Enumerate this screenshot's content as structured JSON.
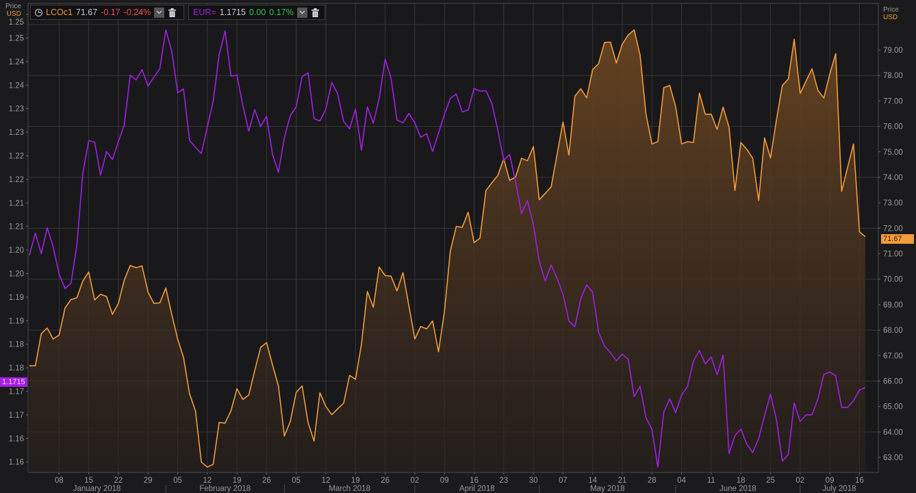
{
  "left_axis": {
    "title": "Price",
    "unit": "USD"
  },
  "right_axis": {
    "title": "Price",
    "unit": "USD"
  },
  "legend": [
    {
      "symbol": "LCOc1",
      "last": "71.67",
      "change": "-0.17",
      "change_pct": "-0.24%",
      "icon": "clock-icon"
    },
    {
      "symbol": "EUR=",
      "last": "1.1715",
      "change": "0.00",
      "change_pct": "0.17%"
    }
  ],
  "last_tags": {
    "left": "1.1715",
    "right": "71.67"
  },
  "colors": {
    "brent": "#f39c3a",
    "eur": "#a51ee6",
    "background": "#1b1b1d",
    "grid": "#343437"
  },
  "chart_data": {
    "type": "line",
    "x_unit": "trading day index (Jan 1 2018 = 0)",
    "xlim": [
      -0.23,
      143.19
    ],
    "x_ticks": [
      {
        "i": 5,
        "label": "08"
      },
      {
        "i": 10,
        "label": "15"
      },
      {
        "i": 15,
        "label": "22"
      },
      {
        "i": 20,
        "label": "29"
      },
      {
        "i": 25,
        "label": "05"
      },
      {
        "i": 30,
        "label": "12"
      },
      {
        "i": 35,
        "label": "19"
      },
      {
        "i": 40,
        "label": "26"
      },
      {
        "i": 45,
        "label": "05"
      },
      {
        "i": 50,
        "label": "12"
      },
      {
        "i": 55,
        "label": "19"
      },
      {
        "i": 60,
        "label": "26"
      },
      {
        "i": 65,
        "label": "02"
      },
      {
        "i": 70,
        "label": "09"
      },
      {
        "i": 75,
        "label": "16"
      },
      {
        "i": 80,
        "label": "23"
      },
      {
        "i": 85,
        "label": "30"
      },
      {
        "i": 90,
        "label": "07"
      },
      {
        "i": 95,
        "label": "14"
      },
      {
        "i": 100,
        "label": "21"
      },
      {
        "i": 105,
        "label": "28"
      },
      {
        "i": 110,
        "label": "04"
      },
      {
        "i": 115,
        "label": "11"
      },
      {
        "i": 120,
        "label": "18"
      },
      {
        "i": 125,
        "label": "25"
      },
      {
        "i": 130,
        "label": "02"
      },
      {
        "i": 135,
        "label": "09"
      },
      {
        "i": 140,
        "label": "16"
      }
    ],
    "months": [
      {
        "label": "January 2018",
        "start": -0.23,
        "end": 23
      },
      {
        "label": "February 2018",
        "start": 23,
        "end": 43
      },
      {
        "label": "March 2018",
        "start": 43,
        "end": 65
      },
      {
        "label": "April 2018",
        "start": 65,
        "end": 86
      },
      {
        "label": "May 2018",
        "start": 86,
        "end": 109
      },
      {
        "label": "June 2018",
        "start": 109,
        "end": 130
      },
      {
        "label": "July 2018",
        "start": 130,
        "end": 143.19
      }
    ],
    "left_ylim": [
      1.15348,
      1.25304
    ],
    "left_ticks": [
      {
        "v": 1.2507,
        "label": "1.25"
      },
      {
        "v": 1.2457,
        "label": "1.25"
      },
      {
        "v": 1.2407,
        "label": "1.24"
      },
      {
        "v": 1.2357,
        "label": "1.24"
      },
      {
        "v": 1.2307,
        "label": "1.23"
      },
      {
        "v": 1.2257,
        "label": "1.23"
      },
      {
        "v": 1.2207,
        "label": "1.22"
      },
      {
        "v": 1.2157,
        "label": "1.22"
      },
      {
        "v": 1.2107,
        "label": "1.21"
      },
      {
        "v": 1.2057,
        "label": "1.21"
      },
      {
        "v": 1.2007,
        "label": "1.20"
      },
      {
        "v": 1.1957,
        "label": "1.20"
      },
      {
        "v": 1.1907,
        "label": "1.19"
      },
      {
        "v": 1.1857,
        "label": "1.19"
      },
      {
        "v": 1.1807,
        "label": "1.18"
      },
      {
        "v": 1.1757,
        "label": "1.18"
      },
      {
        "v": 1.1707,
        "label": "1.17"
      },
      {
        "v": 1.1657,
        "label": "1.17"
      },
      {
        "v": 1.1607,
        "label": "1.16"
      },
      {
        "v": 1.1557,
        "label": "1.16"
      }
    ],
    "right_ylim": [
      62.41,
      80.83
    ],
    "right_ticks": [
      79,
      78,
      77,
      76,
      75,
      74,
      73,
      72,
      71,
      70,
      69,
      68,
      67,
      66,
      65,
      64,
      63
    ],
    "right_tick_labels": [
      "79.00",
      "78.00",
      "77.00",
      "76.00",
      "75.00",
      "74.00",
      "73.00",
      "72.00",
      "71.00",
      "70.00",
      "69.00",
      "68.00",
      "67.00",
      "66.00",
      "65.00",
      "64.00",
      "63.00"
    ],
    "grid_values_right": [
      80,
      78,
      76,
      74,
      72,
      70,
      68,
      66,
      64
    ],
    "series": [
      {
        "name": "LCOc1",
        "axis": "right",
        "style": "area",
        "values": [
          66.6,
          66.6,
          67.86,
          68.08,
          67.65,
          67.8,
          68.87,
          69.2,
          69.27,
          69.92,
          70.28,
          69.18,
          69.41,
          69.32,
          68.62,
          69.05,
          69.97,
          70.54,
          70.45,
          70.52,
          69.49,
          69.05,
          69.07,
          69.66,
          68.62,
          67.65,
          66.92,
          65.51,
          64.83,
          62.82,
          62.62,
          62.73,
          64.37,
          64.35,
          64.83,
          65.7,
          65.28,
          65.45,
          66.41,
          67.32,
          67.51,
          66.64,
          65.81,
          63.84,
          64.41,
          65.56,
          65.81,
          64.37,
          63.64,
          65.54,
          65.0,
          64.68,
          64.91,
          65.13,
          66.22,
          66.07,
          67.43,
          69.52,
          68.9,
          70.48,
          70.14,
          70.12,
          69.54,
          70.26,
          68.96,
          67.65,
          68.14,
          68.05,
          68.36,
          67.15,
          68.73,
          71.11,
          72.07,
          72.04,
          72.63,
          71.44,
          71.61,
          73.48,
          73.79,
          74.07,
          74.73,
          73.88,
          74.01,
          74.75,
          74.65,
          75.21,
          73.12,
          73.37,
          73.63,
          74.9,
          76.17,
          74.87,
          77.19,
          77.48,
          77.12,
          78.23,
          78.46,
          79.3,
          79.31,
          78.49,
          79.23,
          79.59,
          79.79,
          78.8,
          76.48,
          75.31,
          75.4,
          77.52,
          77.61,
          76.78,
          75.31,
          75.4,
          75.37,
          77.31,
          76.48,
          76.48,
          75.88,
          76.76,
          75.97,
          73.48,
          75.37,
          75.1,
          74.75,
          73.09,
          75.55,
          74.76,
          76.25,
          77.61,
          77.86,
          79.42,
          77.29,
          77.78,
          78.26,
          77.41,
          77.12,
          78.06,
          78.86,
          73.45,
          74.39,
          75.31,
          71.86,
          71.67
        ]
      },
      {
        "name": "EUR=",
        "axis": "left",
        "style": "line",
        "values": [
          1.1996,
          1.2043,
          1.1999,
          1.2054,
          1.2014,
          1.1956,
          1.1925,
          1.1936,
          1.2017,
          1.217,
          1.2239,
          1.2236,
          1.2166,
          1.2216,
          1.2199,
          1.2237,
          1.2273,
          1.2378,
          1.2368,
          1.239,
          1.2355,
          1.2374,
          1.2392,
          1.2474,
          1.243,
          1.2341,
          1.2349,
          1.224,
          1.2225,
          1.2212,
          1.2268,
          1.2323,
          1.2421,
          1.2472,
          1.2376,
          1.2378,
          1.2314,
          1.2259,
          1.2305,
          1.2269,
          1.2291,
          1.221,
          1.2172,
          1.2246,
          1.2292,
          1.2311,
          1.2375,
          1.2383,
          1.2286,
          1.2281,
          1.2306,
          1.2363,
          1.2338,
          1.228,
          1.2264,
          1.2306,
          1.2219,
          1.2311,
          1.2276,
          1.2329,
          1.2412,
          1.2372,
          1.2283,
          1.2277,
          1.2297,
          1.2277,
          1.2246,
          1.2254,
          1.2216,
          1.2255,
          1.2295,
          1.2329,
          1.2338,
          1.23,
          1.2304,
          1.235,
          1.2344,
          1.2345,
          1.2318,
          1.2262,
          1.2197,
          1.221,
          1.2152,
          1.2084,
          1.2112,
          1.206,
          1.1983,
          1.1941,
          1.1975,
          1.1947,
          1.1913,
          1.1856,
          1.1844,
          1.1904,
          1.1933,
          1.1917,
          1.1833,
          1.1803,
          1.1789,
          1.1772,
          1.1786,
          1.1775,
          1.1696,
          1.1718,
          1.1651,
          1.1627,
          1.1546,
          1.1663,
          1.1691,
          1.1662,
          1.1699,
          1.1717,
          1.1771,
          1.1794,
          1.1765,
          1.178,
          1.1742,
          1.1784,
          1.1575,
          1.1613,
          1.1627,
          1.1595,
          1.1577,
          1.1607,
          1.1656,
          1.1701,
          1.1647,
          1.1559,
          1.1573,
          1.1682,
          1.1643,
          1.1657,
          1.1657,
          1.1691,
          1.1743,
          1.1748,
          1.174,
          1.1673,
          1.1673,
          1.1687,
          1.171,
          1.1715
        ]
      }
    ]
  }
}
